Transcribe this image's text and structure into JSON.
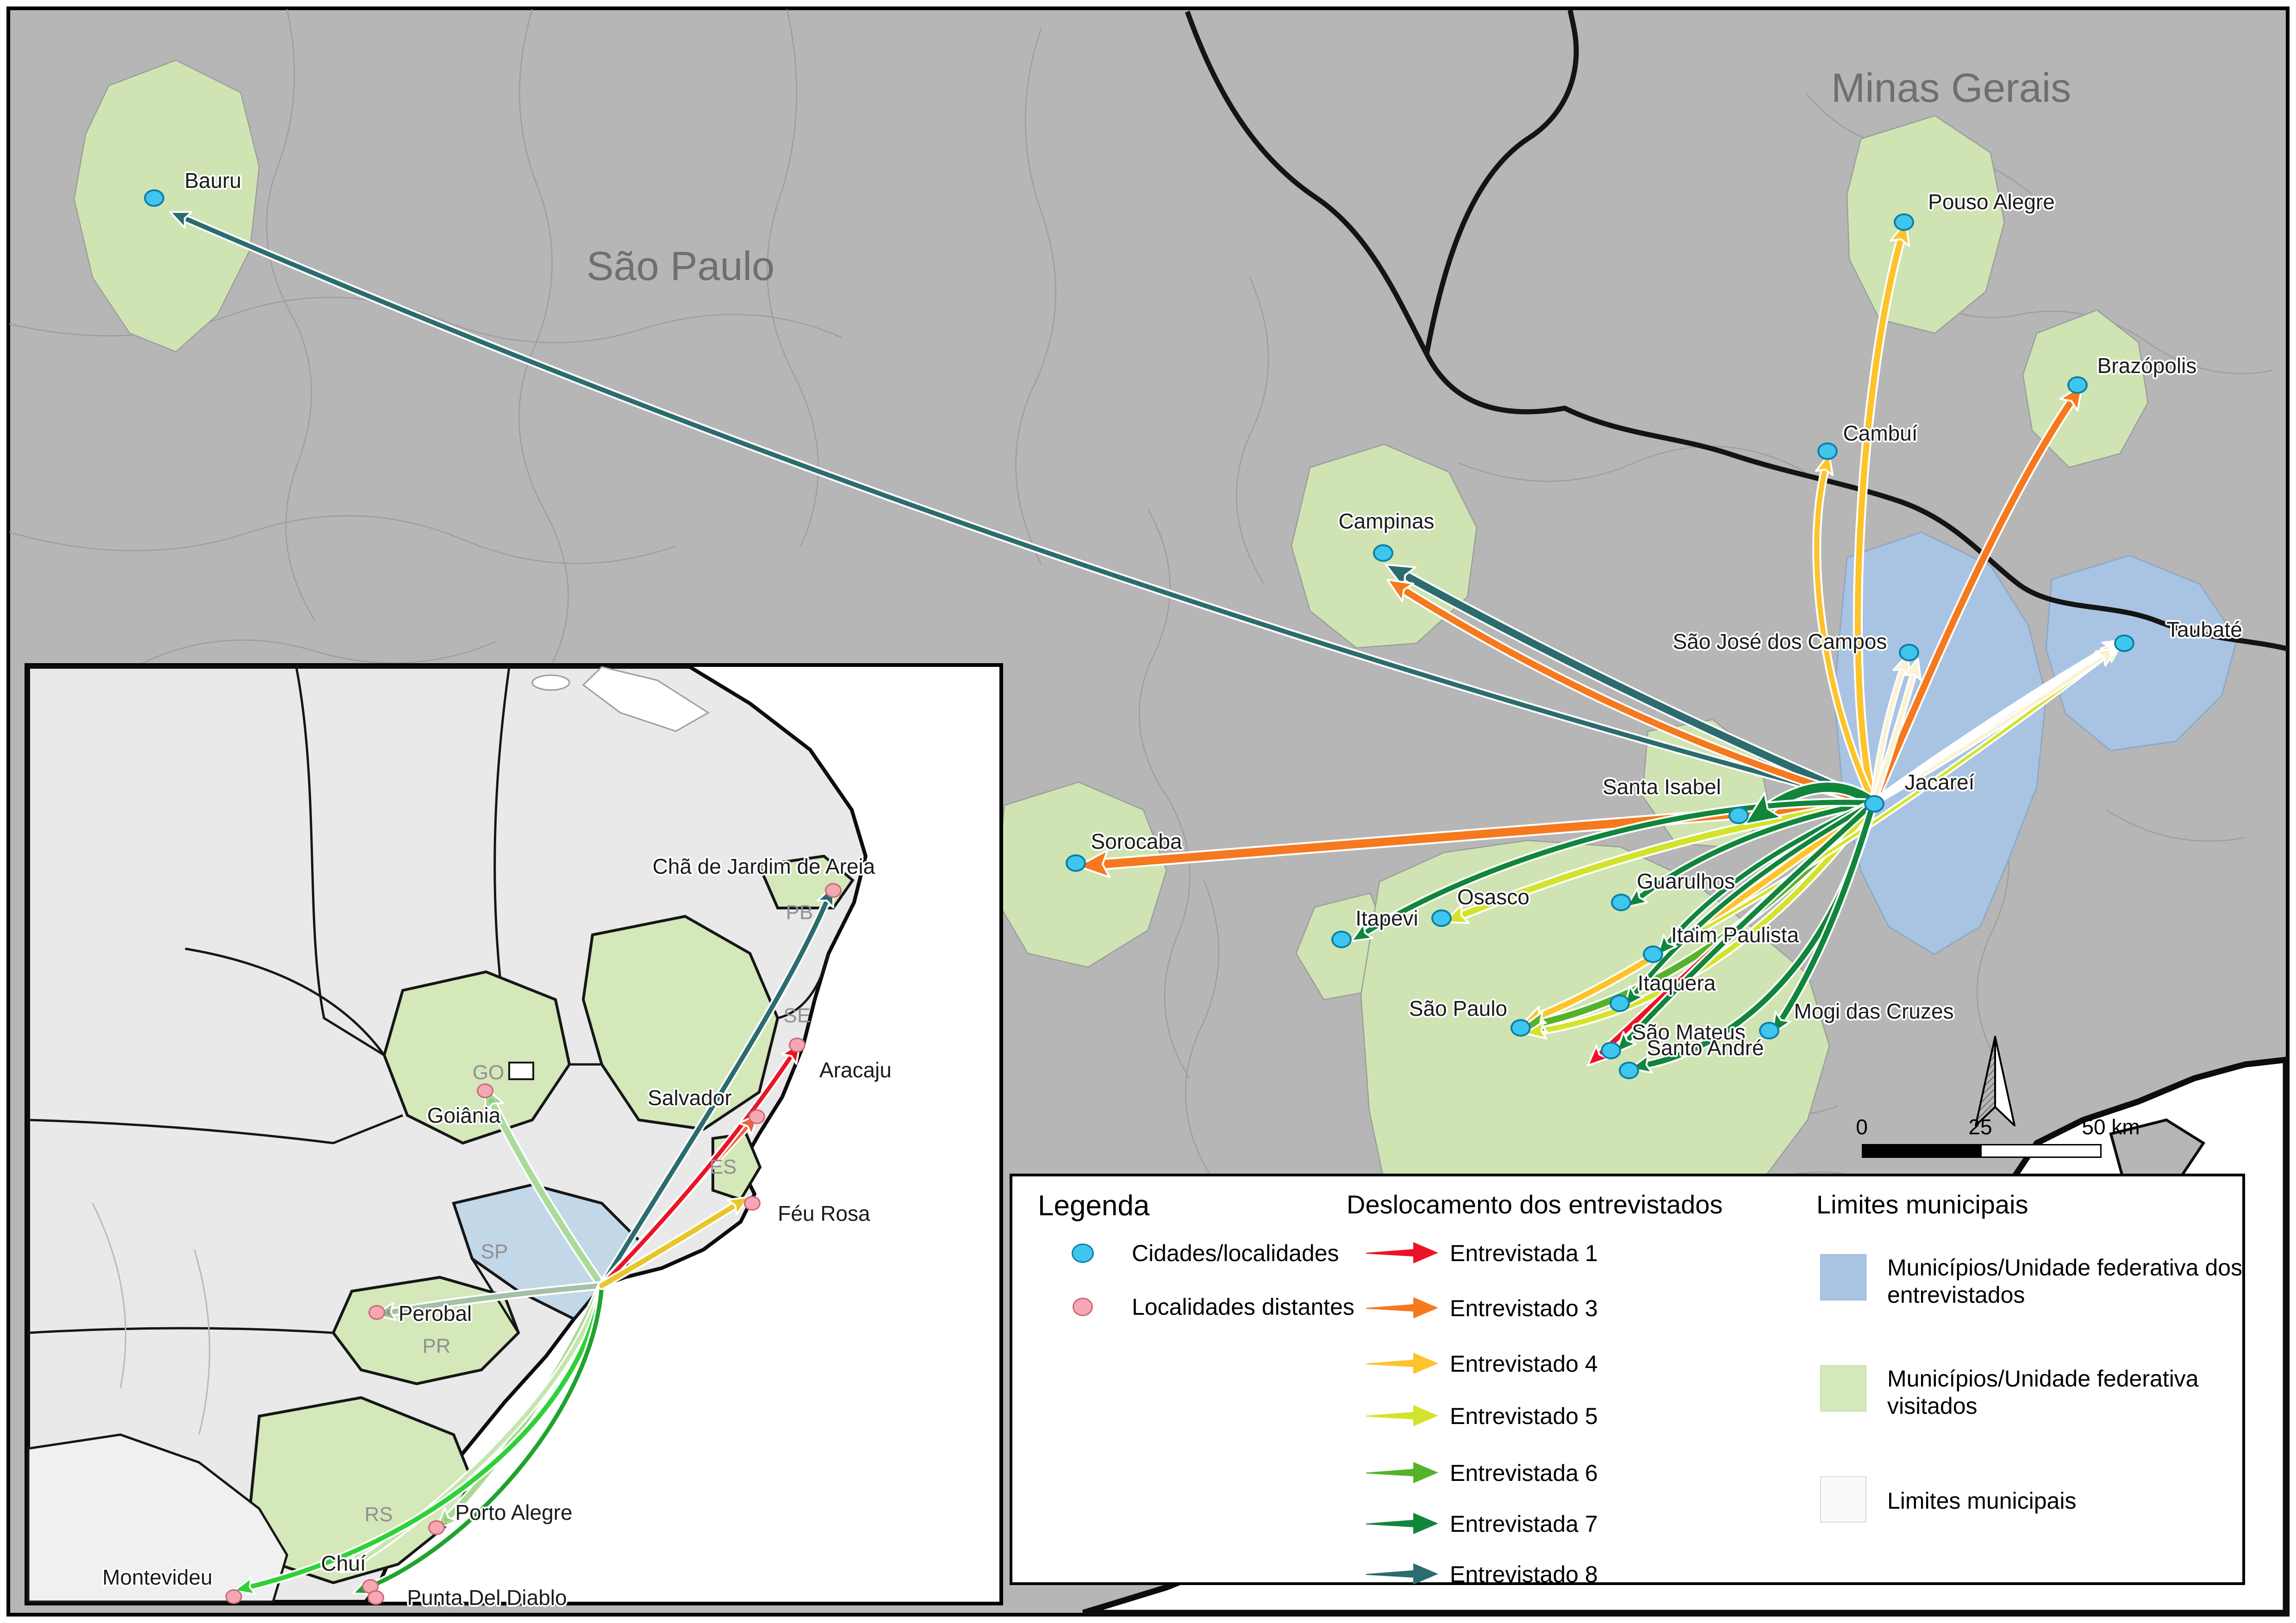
{
  "main_map": {
    "state_labels": {
      "sao_paulo": "São Paulo",
      "minas_gerais": "Minas Gerais"
    },
    "cities": [
      {
        "name": "Bauru"
      },
      {
        "name": "Campinas"
      },
      {
        "name": "Sorocaba"
      },
      {
        "name": "Itapevi"
      },
      {
        "name": "Osasco"
      },
      {
        "name": "São Paulo"
      },
      {
        "name": "Guarulhos"
      },
      {
        "name": "Santa Isabel"
      },
      {
        "name": "Itaim Paulista"
      },
      {
        "name": "Itaquera"
      },
      {
        "name": "São Mateus"
      },
      {
        "name": "Santo André"
      },
      {
        "name": "Mogi das Cruzes"
      },
      {
        "name": "Jacareí"
      },
      {
        "name": "São José dos Campos"
      },
      {
        "name": "Taubaté"
      },
      {
        "name": "Pouso Alegre"
      },
      {
        "name": "Cambuí"
      },
      {
        "name": "Brazópolis"
      }
    ],
    "scale_bar": {
      "start": "0",
      "middle": "25",
      "end": "50 km"
    }
  },
  "inset_map": {
    "state_labels": [
      {
        "label": "GO"
      },
      {
        "label": "SP"
      },
      {
        "label": "PR"
      },
      {
        "label": "RS"
      },
      {
        "label": "PB"
      },
      {
        "label": "SE"
      },
      {
        "label": "ES"
      }
    ],
    "places": [
      {
        "name": "Chã de Jardim de Areia"
      },
      {
        "name": "Aracaju"
      },
      {
        "name": "Salvador"
      },
      {
        "name": "Goiânia"
      },
      {
        "name": "Féu Rosa"
      },
      {
        "name": "Perobal"
      },
      {
        "name": "Porto Alegre"
      },
      {
        "name": "Chuí"
      },
      {
        "name": "Punta Del Diablo"
      },
      {
        "name": "Montevideu"
      }
    ]
  },
  "legend": {
    "title": "Legenda",
    "points": [
      {
        "label": "Cidades/localidades",
        "color": "#3ec6ee"
      },
      {
        "label": "Localidades distantes",
        "color": "#f3a8b3"
      }
    ],
    "flows_title": "Deslocamento dos entrevistados",
    "flows": [
      {
        "label": "Entrevistada 1",
        "color": "#ea1426"
      },
      {
        "label": "Entrevistado 3",
        "color": "#f5791e"
      },
      {
        "label": "Entrevistado 4",
        "color": "#fdc32a"
      },
      {
        "label": "Entrevistado 5",
        "color": "#d3e32b"
      },
      {
        "label": "Entrevistada 6",
        "color": "#55b32a"
      },
      {
        "label": "Entrevistada 7",
        "color": "#11853c"
      },
      {
        "label": "Entrevistado 8",
        "color": "#2c6c6e"
      }
    ],
    "limits_title": "Limites municipais",
    "limits": [
      {
        "label": "Municípios/Unidade federativa dos entrevistados",
        "color": "#a9c4e3"
      },
      {
        "label": "Municípios/Unidade federativa visitados",
        "color": "#d4e8ba"
      },
      {
        "label": "Limites municipais",
        "color": "#fafafa"
      }
    ]
  },
  "colors": {
    "land_gray": "#b6b6b7",
    "inset_land": "#e9e9e9",
    "municipality_blue": "#a9c4e3",
    "municipality_green": "#cfe4b2",
    "boundary_thin": "#9c9c9c",
    "state_border": "#161616",
    "ocean": "#ffffff"
  }
}
